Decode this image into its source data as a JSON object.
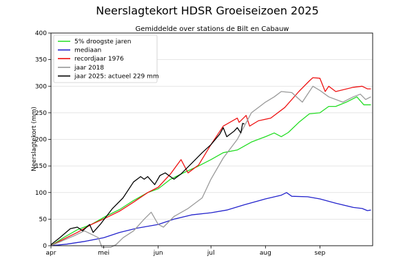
{
  "chart_data": {
    "type": "line",
    "title": "Neerslagtekort HDSR Groeiseizoen 2025",
    "subtitle": "Gemiddelde over stations de Bilt en Cabauw",
    "xlabel": "",
    "ylabel": "Neerslagtekort (mm)",
    "ylim": [
      0,
      400
    ],
    "yticks": [
      0,
      50,
      100,
      150,
      200,
      250,
      300,
      350,
      400
    ],
    "xlim": [
      "2025-04-01",
      "2025-09-30"
    ],
    "xticks": [
      {
        "label": "apr",
        "date": "2025-04-01"
      },
      {
        "label": "mei",
        "date": "2025-05-01"
      },
      {
        "label": "jun",
        "date": "2025-06-01"
      },
      {
        "label": "jul",
        "date": "2025-07-01"
      },
      {
        "label": "aug",
        "date": "2025-08-01"
      },
      {
        "label": "sep",
        "date": "2025-09-01"
      }
    ],
    "grid": "horizontal",
    "legend_position": "top-left",
    "series": [
      {
        "name": "5% droogste jaren",
        "color": "#22dd22",
        "points": [
          [
            "2025-04-01",
            0
          ],
          [
            "2025-04-08",
            15
          ],
          [
            "2025-04-16",
            30
          ],
          [
            "2025-04-24",
            40
          ],
          [
            "2025-05-02",
            55
          ],
          [
            "2025-05-10",
            68
          ],
          [
            "2025-05-18",
            85
          ],
          [
            "2025-05-26",
            100
          ],
          [
            "2025-06-01",
            107
          ],
          [
            "2025-06-08",
            125
          ],
          [
            "2025-06-16",
            138
          ],
          [
            "2025-06-24",
            150
          ],
          [
            "2025-07-01",
            162
          ],
          [
            "2025-07-08",
            175
          ],
          [
            "2025-07-16",
            180
          ],
          [
            "2025-07-24",
            195
          ],
          [
            "2025-08-01",
            205
          ],
          [
            "2025-08-06",
            212
          ],
          [
            "2025-08-10",
            205
          ],
          [
            "2025-08-14",
            213
          ],
          [
            "2025-08-20",
            232
          ],
          [
            "2025-08-26",
            248
          ],
          [
            "2025-09-01",
            250
          ],
          [
            "2025-09-06",
            262
          ],
          [
            "2025-09-10",
            262
          ],
          [
            "2025-09-16",
            270
          ],
          [
            "2025-09-22",
            280
          ],
          [
            "2025-09-26",
            265
          ],
          [
            "2025-09-30",
            265
          ]
        ]
      },
      {
        "name": "mediaan",
        "color": "#2222cc",
        "points": [
          [
            "2025-04-01",
            0
          ],
          [
            "2025-04-10",
            3
          ],
          [
            "2025-04-20",
            8
          ],
          [
            "2025-05-01",
            15
          ],
          [
            "2025-05-10",
            25
          ],
          [
            "2025-05-20",
            33
          ],
          [
            "2025-06-01",
            40
          ],
          [
            "2025-06-10",
            50
          ],
          [
            "2025-06-20",
            58
          ],
          [
            "2025-07-01",
            62
          ],
          [
            "2025-07-10",
            67
          ],
          [
            "2025-07-20",
            77
          ],
          [
            "2025-08-01",
            88
          ],
          [
            "2025-08-10",
            95
          ],
          [
            "2025-08-13",
            100
          ],
          [
            "2025-08-16",
            93
          ],
          [
            "2025-08-25",
            92
          ],
          [
            "2025-09-01",
            88
          ],
          [
            "2025-09-10",
            80
          ],
          [
            "2025-09-20",
            72
          ],
          [
            "2025-09-25",
            70
          ],
          [
            "2025-09-28",
            66
          ],
          [
            "2025-09-30",
            67
          ]
        ]
      },
      {
        "name": "recordjaar 1976",
        "color": "#ee1111",
        "points": [
          [
            "2025-04-01",
            0
          ],
          [
            "2025-04-08",
            12
          ],
          [
            "2025-04-16",
            25
          ],
          [
            "2025-04-24",
            40
          ],
          [
            "2025-05-02",
            52
          ],
          [
            "2025-05-10",
            65
          ],
          [
            "2025-05-18",
            82
          ],
          [
            "2025-05-26",
            100
          ],
          [
            "2025-06-01",
            110
          ],
          [
            "2025-06-08",
            135
          ],
          [
            "2025-06-14",
            162
          ],
          [
            "2025-06-18",
            137
          ],
          [
            "2025-06-24",
            152
          ],
          [
            "2025-07-01",
            190
          ],
          [
            "2025-07-08",
            225
          ],
          [
            "2025-07-16",
            240
          ],
          [
            "2025-07-17",
            232
          ],
          [
            "2025-07-21",
            245
          ],
          [
            "2025-07-23",
            225
          ],
          [
            "2025-07-28",
            235
          ],
          [
            "2025-08-04",
            240
          ],
          [
            "2025-08-12",
            260
          ],
          [
            "2025-08-20",
            290
          ],
          [
            "2025-08-26",
            310
          ],
          [
            "2025-08-28",
            316
          ],
          [
            "2025-09-01",
            315
          ],
          [
            "2025-09-04",
            290
          ],
          [
            "2025-09-06",
            300
          ],
          [
            "2025-09-10",
            290
          ],
          [
            "2025-09-20",
            298
          ],
          [
            "2025-09-25",
            300
          ],
          [
            "2025-09-28",
            295
          ],
          [
            "2025-09-30",
            295
          ]
        ]
      },
      {
        "name": "jaar 2018",
        "color": "#999999",
        "points": [
          [
            "2025-04-01",
            0
          ],
          [
            "2025-04-08",
            10
          ],
          [
            "2025-04-15",
            20
          ],
          [
            "2025-04-20",
            28
          ],
          [
            "2025-04-25",
            20
          ],
          [
            "2025-04-28",
            15
          ],
          [
            "2025-04-30",
            -3
          ],
          [
            "2025-05-05",
            -3
          ],
          [
            "2025-05-08",
            2
          ],
          [
            "2025-05-12",
            15
          ],
          [
            "2025-05-18",
            28
          ],
          [
            "2025-05-24",
            50
          ],
          [
            "2025-05-28",
            63
          ],
          [
            "2025-06-01",
            40
          ],
          [
            "2025-06-04",
            35
          ],
          [
            "2025-06-10",
            55
          ],
          [
            "2025-06-18",
            70
          ],
          [
            "2025-06-26",
            90
          ],
          [
            "2025-07-01",
            125
          ],
          [
            "2025-07-08",
            165
          ],
          [
            "2025-07-16",
            200
          ],
          [
            "2025-07-24",
            250
          ],
          [
            "2025-08-01",
            270
          ],
          [
            "2025-08-06",
            280
          ],
          [
            "2025-08-10",
            290
          ],
          [
            "2025-08-16",
            288
          ],
          [
            "2025-08-22",
            270
          ],
          [
            "2025-08-28",
            300
          ],
          [
            "2025-09-01",
            292
          ],
          [
            "2025-09-06",
            280
          ],
          [
            "2025-09-14",
            270
          ],
          [
            "2025-09-20",
            280
          ],
          [
            "2025-09-24",
            285
          ],
          [
            "2025-09-27",
            275
          ],
          [
            "2025-09-30",
            280
          ]
        ]
      },
      {
        "name": "jaar 2025: actueel 229 mm",
        "color": "#000000",
        "points": [
          [
            "2025-04-01",
            2
          ],
          [
            "2025-04-06",
            15
          ],
          [
            "2025-04-12",
            32
          ],
          [
            "2025-04-16",
            35
          ],
          [
            "2025-04-19",
            28
          ],
          [
            "2025-04-23",
            40
          ],
          [
            "2025-04-25",
            25
          ],
          [
            "2025-04-29",
            40
          ],
          [
            "2025-05-06",
            70
          ],
          [
            "2025-05-12",
            90
          ],
          [
            "2025-05-18",
            120
          ],
          [
            "2025-05-22",
            130
          ],
          [
            "2025-05-24",
            125
          ],
          [
            "2025-05-26",
            130
          ],
          [
            "2025-05-30",
            115
          ],
          [
            "2025-06-02",
            132
          ],
          [
            "2025-06-05",
            137
          ],
          [
            "2025-06-10",
            125
          ],
          [
            "2025-06-14",
            135
          ],
          [
            "2025-06-20",
            155
          ],
          [
            "2025-06-26",
            175
          ],
          [
            "2025-07-01",
            190
          ],
          [
            "2025-07-06",
            210
          ],
          [
            "2025-07-08",
            222
          ],
          [
            "2025-07-10",
            205
          ],
          [
            "2025-07-14",
            215
          ],
          [
            "2025-07-16",
            222
          ],
          [
            "2025-07-18",
            212
          ],
          [
            "2025-07-19",
            230
          ],
          [
            "2025-07-20",
            229
          ]
        ]
      }
    ]
  }
}
